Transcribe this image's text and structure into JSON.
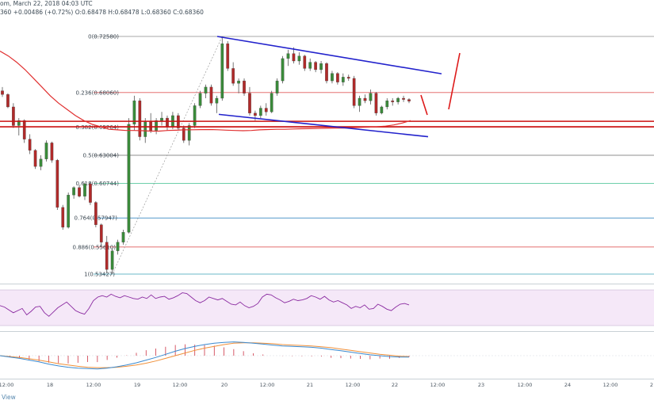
{
  "header": {
    "title_line": "om, March 22, 2018 04:03 UTC",
    "ohlc_line": "360 +0.00486 (+0.72%) O:0.68478 H:0.68478 L:0.68360 C:0.68360"
  },
  "footer": {
    "label": "View"
  },
  "chart_data": {
    "type": "candlestick",
    "x_tick_labels": [
      "12:00",
      "18",
      "12:00",
      "19",
      "12:00",
      "20",
      "12:00",
      "21",
      "12:00",
      "22",
      "12:00",
      "23",
      "12:00",
      "24",
      "12:00",
      "2"
    ],
    "fib_levels": [
      {
        "ratio": "0",
        "price": 0.7258,
        "label": "0(0.72580)",
        "color": "#8a8a8a"
      },
      {
        "ratio": "0.236",
        "price": 0.6806,
        "label": "0.236(0.68060)",
        "color": "#e05a5a"
      },
      {
        "ratio": "0.382",
        "price": 0.65264,
        "label": "0.382(0.65264)",
        "color": "#e05a5a"
      },
      {
        "ratio": "0.5",
        "price": 0.63004,
        "label": "0.5(0.63004)",
        "color": "#6a6a6a"
      },
      {
        "ratio": "0.618",
        "price": 0.60744,
        "label": "0.618(0.60744)",
        "color": "#3fbf8f"
      },
      {
        "ratio": "0.764",
        "price": 0.57947,
        "label": "0.764(0.57947)",
        "color": "#3a8ac2"
      },
      {
        "ratio": "0.886",
        "price": 0.5561,
        "label": "0.886(0.55610)",
        "color": "#e05a5a"
      },
      {
        "ratio": "1",
        "price": 0.53427,
        "label": "1(0.53427)",
        "color": "#3aa0b8"
      }
    ],
    "price_range": [
      0.528,
      0.737
    ],
    "candles": [
      [
        0.682,
        0.685,
        0.677,
        0.679
      ],
      [
        0.679,
        0.68,
        0.668,
        0.669
      ],
      [
        0.669,
        0.672,
        0.652,
        0.654
      ],
      [
        0.654,
        0.66,
        0.646,
        0.658
      ],
      [
        0.658,
        0.659,
        0.64,
        0.643
      ],
      [
        0.643,
        0.647,
        0.631,
        0.634
      ],
      [
        0.634,
        0.635,
        0.619,
        0.621
      ],
      [
        0.621,
        0.63,
        0.618,
        0.627
      ],
      [
        0.627,
        0.642,
        0.625,
        0.64
      ],
      [
        0.64,
        0.641,
        0.624,
        0.626
      ],
      [
        0.626,
        0.627,
        0.586,
        0.588
      ],
      [
        0.588,
        0.59,
        0.57,
        0.572
      ],
      [
        0.572,
        0.6,
        0.571,
        0.598
      ],
      [
        0.598,
        0.605,
        0.595,
        0.604
      ],
      [
        0.604,
        0.606,
        0.596,
        0.597
      ],
      [
        0.597,
        0.608,
        0.594,
        0.607
      ],
      [
        0.607,
        0.609,
        0.59,
        0.592
      ],
      [
        0.592,
        0.593,
        0.572,
        0.574
      ],
      [
        0.574,
        0.575,
        0.556,
        0.56
      ],
      [
        0.56,
        0.565,
        0.535,
        0.538
      ],
      [
        0.538,
        0.555,
        0.5343,
        0.553
      ],
      [
        0.553,
        0.562,
        0.55,
        0.56
      ],
      [
        0.56,
        0.57,
        0.558,
        0.568
      ],
      [
        0.568,
        0.66,
        0.567,
        0.655
      ],
      [
        0.655,
        0.678,
        0.65,
        0.674
      ],
      [
        0.674,
        0.676,
        0.642,
        0.645
      ],
      [
        0.645,
        0.66,
        0.64,
        0.657
      ],
      [
        0.657,
        0.664,
        0.648,
        0.65
      ],
      [
        0.65,
        0.66,
        0.647,
        0.658
      ],
      [
        0.658,
        0.665,
        0.654,
        0.66
      ],
      [
        0.66,
        0.662,
        0.65,
        0.653
      ],
      [
        0.653,
        0.665,
        0.651,
        0.662
      ],
      [
        0.662,
        0.664,
        0.65,
        0.652
      ],
      [
        0.652,
        0.654,
        0.64,
        0.642
      ],
      [
        0.642,
        0.656,
        0.638,
        0.654
      ],
      [
        0.654,
        0.672,
        0.652,
        0.67
      ],
      [
        0.67,
        0.682,
        0.668,
        0.68
      ],
      [
        0.68,
        0.687,
        0.676,
        0.685
      ],
      [
        0.685,
        0.687,
        0.67,
        0.672
      ],
      [
        0.672,
        0.678,
        0.664,
        0.676
      ],
      [
        0.676,
        0.7258,
        0.674,
        0.72
      ],
      [
        0.72,
        0.722,
        0.698,
        0.7
      ],
      [
        0.7,
        0.705,
        0.686,
        0.688
      ],
      [
        0.688,
        0.692,
        0.68,
        0.69
      ],
      [
        0.69,
        0.692,
        0.678,
        0.68
      ],
      [
        0.68,
        0.685,
        0.662,
        0.664
      ],
      [
        0.664,
        0.666,
        0.658,
        0.662
      ],
      [
        0.662,
        0.67,
        0.66,
        0.668
      ],
      [
        0.668,
        0.672,
        0.662,
        0.665
      ],
      [
        0.665,
        0.682,
        0.664,
        0.68
      ],
      [
        0.68,
        0.692,
        0.678,
        0.69
      ],
      [
        0.69,
        0.71,
        0.688,
        0.708
      ],
      [
        0.708,
        0.715,
        0.702,
        0.712
      ],
      [
        0.712,
        0.717,
        0.704,
        0.706
      ],
      [
        0.706,
        0.713,
        0.703,
        0.71
      ],
      [
        0.71,
        0.711,
        0.698,
        0.7
      ],
      [
        0.7,
        0.708,
        0.698,
        0.705
      ],
      [
        0.705,
        0.706,
        0.697,
        0.699
      ],
      [
        0.699,
        0.706,
        0.696,
        0.704
      ],
      [
        0.704,
        0.705,
        0.688,
        0.69
      ],
      [
        0.69,
        0.698,
        0.688,
        0.696
      ],
      [
        0.696,
        0.697,
        0.687,
        0.689
      ],
      [
        0.689,
        0.696,
        0.686,
        0.693
      ],
      [
        0.693,
        0.695,
        0.69,
        0.692
      ],
      [
        0.692,
        0.694,
        0.668,
        0.67
      ],
      [
        0.67,
        0.678,
        0.665,
        0.676
      ],
      [
        0.676,
        0.679,
        0.672,
        0.674
      ],
      [
        0.674,
        0.683,
        0.671,
        0.68
      ],
      [
        0.68,
        0.681,
        0.662,
        0.664
      ],
      [
        0.664,
        0.67,
        0.663,
        0.669
      ],
      [
        0.669,
        0.676,
        0.667,
        0.674
      ],
      [
        0.674,
        0.676,
        0.67,
        0.673
      ],
      [
        0.673,
        0.677,
        0.671,
        0.676
      ],
      [
        0.676,
        0.678,
        0.673,
        0.675
      ],
      [
        0.675,
        0.676,
        0.672,
        0.6736
      ]
    ],
    "trendlines": {
      "upper": {
        "from_price": 0.7258,
        "to_price": 0.6957,
        "color": "#2222cc"
      },
      "lower": {
        "from_price": 0.663,
        "to_price": 0.645,
        "color": "#2222cc"
      }
    },
    "horizontal_levels": [
      {
        "price": 0.6574,
        "color": "#cc1111"
      },
      {
        "price": 0.653,
        "color": "#cc1111"
      }
    ],
    "moving_average": {
      "color": "#e03030",
      "values": [
        0.714,
        0.71,
        0.705,
        0.699,
        0.692,
        0.685,
        0.678,
        0.672,
        0.667,
        0.662,
        0.658,
        0.655,
        0.653,
        0.651,
        0.6505,
        0.65,
        0.65,
        0.6498,
        0.6495,
        0.6495,
        0.65,
        0.6502,
        0.6505,
        0.6506,
        0.6507,
        0.6508,
        0.6506,
        0.6503,
        0.65,
        0.6498,
        0.65,
        0.6505,
        0.6508,
        0.651,
        0.651,
        0.6512,
        0.6514,
        0.6515,
        0.6516,
        0.6518,
        0.652,
        0.652,
        0.6522,
        0.6525,
        0.6527,
        0.653,
        0.6535,
        0.6545,
        0.656,
        0.658
      ]
    },
    "rsi": {
      "values": [
        48,
        46,
        42,
        38,
        41,
        44,
        35,
        40,
        46,
        47,
        38,
        33,
        39,
        45,
        49,
        53,
        47,
        41,
        38,
        36,
        44,
        55,
        60,
        62,
        60,
        64,
        61,
        59,
        62,
        60,
        58,
        57,
        60,
        58,
        63,
        58,
        60,
        61,
        57,
        59,
        62,
        66,
        65,
        60,
        55,
        52,
        55,
        60,
        58,
        56,
        58,
        54,
        50,
        49,
        53,
        48,
        45,
        47,
        51,
        60,
        64,
        63,
        59,
        56,
        52,
        54,
        57,
        55,
        56,
        58,
        62,
        60,
        57,
        61,
        56,
        53,
        55,
        52,
        49,
        44,
        47,
        45,
        49,
        43,
        44,
        50,
        47,
        43,
        41,
        46,
        50,
        51,
        49
      ]
    },
    "macd": {
      "macd_line": [
        0,
        -0.3,
        -0.6,
        -1,
        -1.4,
        -1.9,
        -2.3,
        -2.6,
        -2.8,
        -2.9,
        -3,
        -2.8,
        -2.5,
        -2.1,
        -1.6,
        -1,
        -0.4,
        0.3,
        1,
        1.6,
        2.1,
        2.5,
        2.8,
        3,
        3.1,
        3,
        2.8,
        2.6,
        2.4,
        2.2,
        2.1,
        2,
        1.9,
        1.7,
        1.4,
        1.1,
        0.8,
        0.5,
        0.2,
        0,
        -0.2,
        -0.3,
        -0.3
      ],
      "signal_line": [
        0,
        -0.2,
        -0.4,
        -0.7,
        -1,
        -1.4,
        -1.8,
        -2.1,
        -2.4,
        -2.6,
        -2.7,
        -2.7,
        -2.6,
        -2.4,
        -2.1,
        -1.7,
        -1.2,
        -0.6,
        0,
        0.6,
        1.2,
        1.7,
        2.1,
        2.5,
        2.8,
        2.9,
        2.9,
        2.8,
        2.7,
        2.5,
        2.4,
        2.3,
        2.2,
        2,
        1.8,
        1.5,
        1.2,
        0.9,
        0.6,
        0.3,
        0.1,
        -0.1,
        -0.2
      ]
    }
  }
}
